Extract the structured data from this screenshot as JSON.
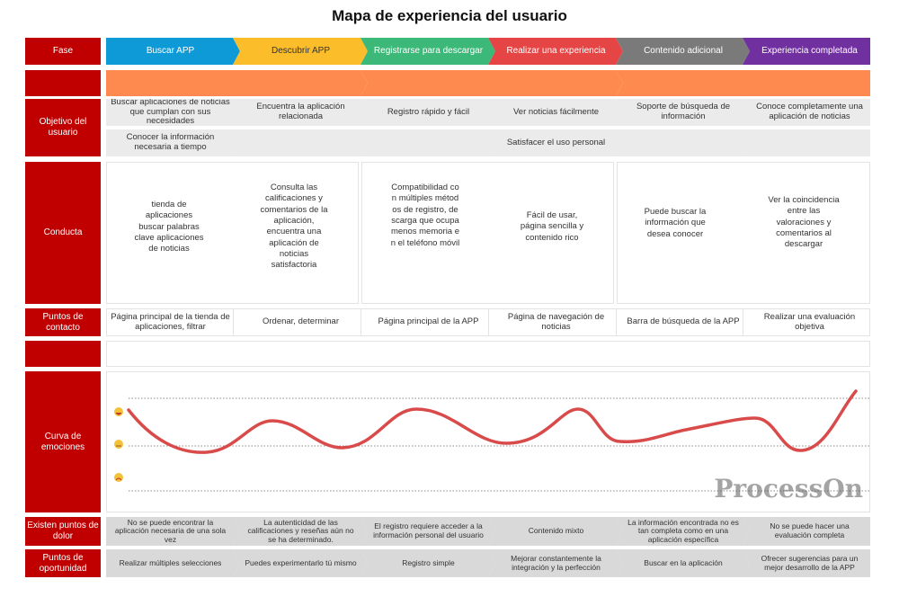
{
  "title": "Mapa de experiencia del usuario",
  "row_labels": {
    "fase": "Fase",
    "objetivo": "Objetivo del usuario",
    "conducta": "Conducta",
    "contacto": "Puntos de contacto",
    "curva": "Curva de emociones",
    "dolor": "Existen puntos de dolor",
    "oportunidad": "Puntos de oportunidad"
  },
  "phases": [
    {
      "label": "Buscar APP",
      "color": "#0e9ad7"
    },
    {
      "label": "Descubrir APP",
      "color": "#fbbd2a"
    },
    {
      "label": "Registrarse para descargar",
      "color": "#3cb878"
    },
    {
      "label": "Realizar una experiencia",
      "color": "#e64545"
    },
    {
      "label": "Contenido adicional",
      "color": "#7a7a7a"
    },
    {
      "label": "Experiencia completada",
      "color": "#7030a0"
    }
  ],
  "objetivo_1": [
    "Buscar aplicaciones de noticias que cumplan con sus necesidades",
    "Encuentra la aplicación relacionada",
    "Registro rápido y fácil",
    "Ver noticias fácilmente",
    "Soporte de búsqueda de información",
    "Conoce completamente una aplicación de noticias"
  ],
  "objetivo_2": [
    "Conocer la información necesaria a tiempo",
    "",
    "",
    "Satisfacer el uso personal",
    "",
    ""
  ],
  "conducta": [
    "tienda de aplicaciones buscar palabras clave aplicaciones de noticias",
    "Consulta las calificaciones y comentarios de la aplicación, encuentra una aplicación de noticias satisfactoria",
    "Compatibilidad con múltiples métodos de registro, descarga que ocupa menos memoria en el teléfono móvil",
    "Fácil de usar, página sencilla y contenido rico",
    "Puede buscar la información que desea conocer",
    "Ver la coincidencia entre las valoraciones y comentarios al descargar"
  ],
  "contacto": [
    "Página principal de la tienda de aplicaciones, filtrar",
    "Ordenar, determinar",
    "Página principal de la APP",
    "Página de navegación de noticias",
    "Barra de búsqueda de la APP",
    "Realizar una evaluación objetiva"
  ],
  "dolor": [
    "No se puede encontrar la aplicación necesaria de una sola vez",
    "La autenticidad de las calificaciones y reseñas aún no se ha determinado.",
    "El registro requiere acceder a la información personal del usuario",
    "Contenido mixto",
    "La información encontrada no es tan completa como en una aplicación específica",
    "No se puede hacer una evaluación completa"
  ],
  "oportunidad": [
    "Realizar múltiples selecciones",
    "Puedes experimentarlo tú mismo",
    "Registro simple",
    "Mejorar constantemente la integración y la perfección",
    "Buscar en la aplicación",
    "Ofrecer sugerencias para un mejor desarrollo de la APP"
  ],
  "watermark": "ProcessOn",
  "colors": {
    "label_bg": "#c00000",
    "orange": "#fe8a4f",
    "curve": "#d94a4a"
  }
}
